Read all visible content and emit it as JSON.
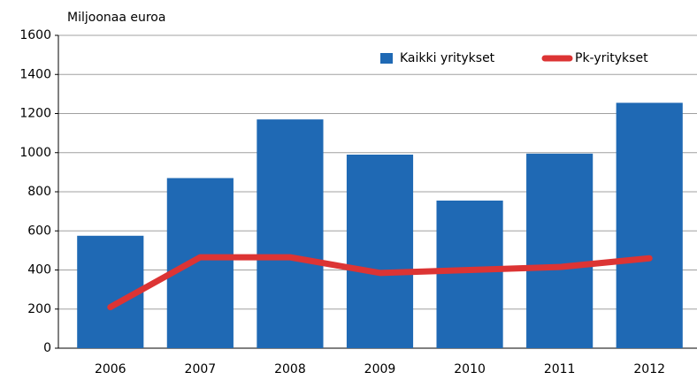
{
  "chart_data": {
    "type": "bar",
    "y_axis_label": "Miljoonaa euroa",
    "categories": [
      "2006",
      "2007",
      "2008",
      "2009",
      "2010",
      "2011",
      "2012"
    ],
    "series": [
      {
        "name": "Kaikki yritykset",
        "type": "bar",
        "color": "#1f69b4",
        "values": [
          575,
          870,
          1170,
          990,
          755,
          995,
          1255
        ]
      },
      {
        "name": "Pk-yritykset",
        "type": "line",
        "color": "#dc3434",
        "values": [
          210,
          465,
          465,
          385,
          400,
          415,
          460
        ]
      }
    ],
    "ylim": [
      0,
      1600
    ],
    "yticks": [
      0,
      200,
      400,
      600,
      800,
      1000,
      1200,
      1400,
      1600
    ],
    "grid": true,
    "legend": "top-right"
  }
}
